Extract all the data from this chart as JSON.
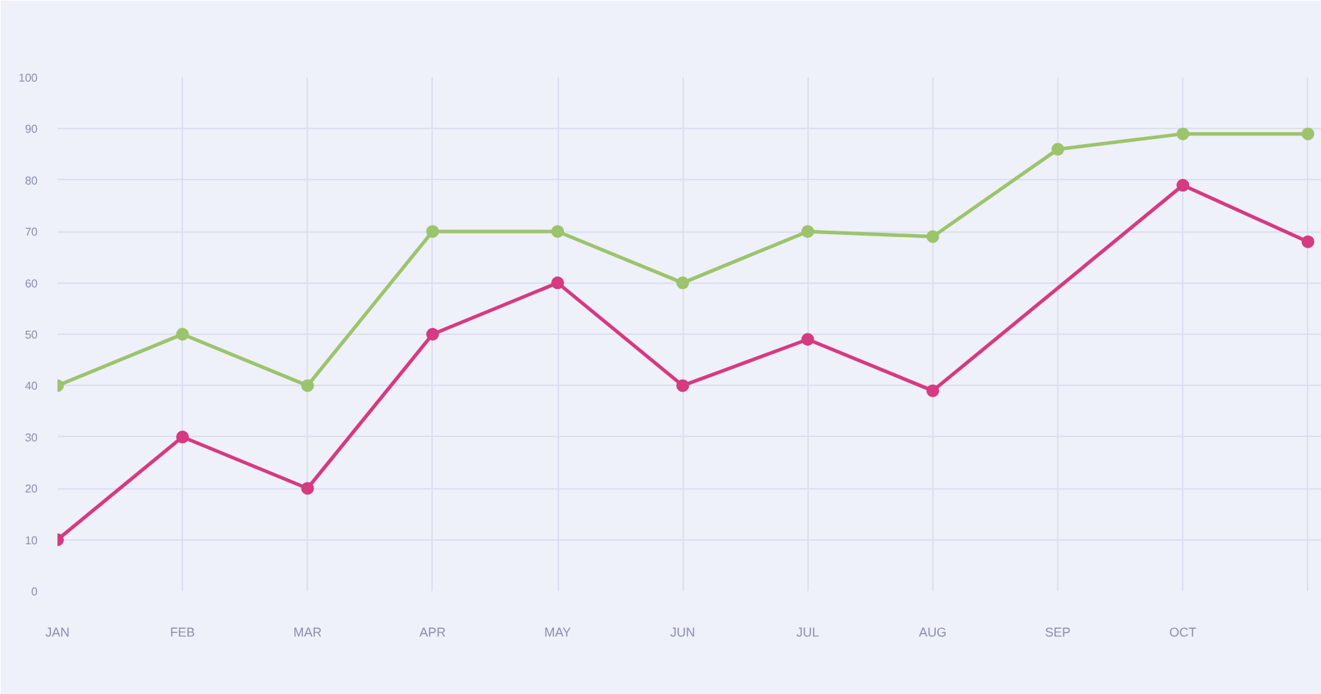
{
  "chart_data": {
    "type": "line",
    "categories": [
      "JAN",
      "FEB",
      "MAR",
      "APR",
      "MAY",
      "JUN",
      "JUL",
      "AUG",
      "SEP",
      "OCT",
      null
    ],
    "series": [
      {
        "color": "#9cc46c",
        "values": [
          40,
          50,
          40,
          70,
          70,
          60,
          70,
          69,
          86,
          89,
          89
        ]
      },
      {
        "color": "#d63a80",
        "values": [
          10,
          30,
          20,
          50,
          60,
          40,
          49,
          39,
          null,
          79,
          68
        ]
      }
    ],
    "ylim": [
      0,
      100
    ],
    "yticks": [
      0,
      10,
      20,
      30,
      40,
      50,
      60,
      70,
      80,
      90,
      100
    ],
    "grid": true,
    "marker": "circle",
    "line_style": "solid"
  }
}
